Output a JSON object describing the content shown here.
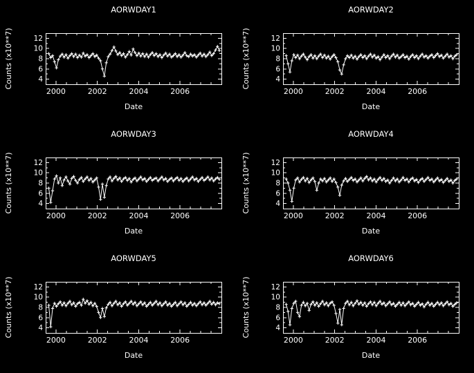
{
  "page": {
    "background": "#000000",
    "foreground": "#ffffff"
  },
  "chart_data": [
    {
      "type": "line",
      "title": "AORWDAY1",
      "xlabel": "Date",
      "ylabel": "Counts (x10**7)",
      "xlim": [
        1999.5,
        2008.0
      ],
      "ylim": [
        3,
        13
      ],
      "xticks": [
        "2000",
        "2002",
        "2004",
        "2006"
      ],
      "xtick_values": [
        2000,
        2002,
        2004,
        2006
      ],
      "yticks": [
        "4",
        "6",
        "8",
        "10",
        "12"
      ],
      "ytick_values": [
        4,
        6,
        8,
        10,
        12
      ],
      "marker": "plus",
      "line_color": "#ffffff",
      "x_start": 1999.65,
      "x_step": 0.0927,
      "values": [
        9.0,
        8.2,
        8.6,
        7.4,
        6.2,
        7.8,
        8.5,
        8.9,
        8.3,
        8.8,
        8.1,
        8.6,
        9.0,
        8.4,
        8.9,
        8.2,
        8.7,
        8.3,
        9.1,
        8.5,
        8.8,
        8.2,
        8.6,
        9.0,
        8.4,
        8.7,
        8.1,
        7.6,
        6.0,
        4.6,
        7.2,
        8.4,
        8.9,
        9.6,
        10.3,
        9.5,
        8.8,
        9.2,
        8.6,
        9.0,
        8.3,
        8.8,
        9.4,
        8.7,
        9.9,
        9.2,
        8.6,
        9.1,
        8.5,
        9.0,
        8.4,
        8.9,
        8.3,
        8.8,
        9.2,
        8.6,
        9.0,
        8.4,
        8.8,
        8.2,
        8.7,
        9.1,
        8.5,
        8.9,
        8.3,
        8.6,
        9.0,
        8.4,
        8.8,
        8.3,
        8.7,
        9.2,
        8.6,
        8.4,
        8.9,
        8.5,
        8.8,
        8.3,
        8.7,
        9.1,
        8.5,
        8.9,
        8.4,
        8.8,
        9.3,
        8.6,
        9.0,
        9.7,
        10.4,
        9.6
      ]
    },
    {
      "type": "line",
      "title": "AORWDAY2",
      "xlabel": "Date",
      "ylabel": "Counts (x10**7)",
      "xlim": [
        1999.5,
        2008.0
      ],
      "ylim": [
        3,
        13
      ],
      "xticks": [
        "2000",
        "2002",
        "2004",
        "2006"
      ],
      "xtick_values": [
        2000,
        2002,
        2004,
        2006
      ],
      "yticks": [
        "4",
        "6",
        "8",
        "10",
        "12"
      ],
      "ytick_values": [
        4,
        6,
        8,
        10,
        12
      ],
      "marker": "plus",
      "line_color": "#ffffff",
      "x_start": 1999.65,
      "x_step": 0.0927,
      "values": [
        8.6,
        7.0,
        5.4,
        7.6,
        8.8,
        8.2,
        8.7,
        8.0,
        8.5,
        8.9,
        8.3,
        7.8,
        8.4,
        8.8,
        8.1,
        8.6,
        8.0,
        8.5,
        8.9,
        8.2,
        8.7,
        8.1,
        8.5,
        7.9,
        8.4,
        8.8,
        8.2,
        7.4,
        5.8,
        5.0,
        6.8,
        8.0,
        8.6,
        8.2,
        8.7,
        8.1,
        8.5,
        7.9,
        8.4,
        8.8,
        8.2,
        8.6,
        8.0,
        8.5,
        8.9,
        8.3,
        8.7,
        8.1,
        8.4,
        7.8,
        8.3,
        8.8,
        8.2,
        8.6,
        8.0,
        8.5,
        8.9,
        8.3,
        8.7,
        8.1,
        8.4,
        8.8,
        8.2,
        8.5,
        7.9,
        8.4,
        8.8,
        8.2,
        8.6,
        8.0,
        8.5,
        8.9,
        8.3,
        8.6,
        8.1,
        8.5,
        8.8,
        8.2,
        8.6,
        9.0,
        8.4,
        8.7,
        8.1,
        8.5,
        8.9,
        8.3,
        8.6,
        8.0,
        8.5,
        8.8
      ]
    },
    {
      "type": "line",
      "title": "AORWDAY3",
      "xlabel": "Date",
      "ylabel": "Counts (x10**7)",
      "xlim": [
        1999.5,
        2008.0
      ],
      "ylim": [
        3,
        13
      ],
      "xticks": [
        "2000",
        "2002",
        "2004",
        "2006"
      ],
      "xtick_values": [
        2000,
        2002,
        2004,
        2006
      ],
      "yticks": [
        "4",
        "6",
        "8",
        "10",
        "12"
      ],
      "ytick_values": [
        4,
        6,
        8,
        10,
        12
      ],
      "marker": "plus",
      "line_color": "#ffffff",
      "x_start": 1999.65,
      "x_step": 0.0927,
      "values": [
        7.0,
        4.2,
        6.5,
        8.8,
        9.4,
        8.0,
        9.0,
        7.5,
        8.6,
        9.2,
        8.4,
        7.8,
        8.9,
        9.3,
        8.5,
        8.0,
        8.7,
        9.1,
        8.3,
        8.8,
        9.2,
        8.5,
        8.9,
        8.2,
        8.6,
        9.0,
        7.2,
        4.8,
        7.8,
        5.2,
        7.5,
        8.8,
        9.2,
        8.4,
        8.9,
        9.3,
        8.6,
        9.0,
        8.3,
        8.8,
        9.1,
        8.5,
        8.9,
        8.2,
        8.7,
        9.0,
        8.4,
        8.8,
        9.2,
        8.6,
        8.9,
        8.3,
        8.7,
        9.1,
        8.5,
        8.8,
        9.0,
        8.4,
        8.8,
        9.2,
        8.6,
        8.9,
        8.3,
        8.7,
        9.0,
        8.4,
        8.8,
        9.1,
        8.5,
        8.9,
        8.3,
        8.7,
        9.0,
        8.4,
        8.8,
        9.2,
        8.6,
        8.9,
        8.3,
        8.7,
        9.1,
        8.5,
        8.8,
        9.2,
        8.6,
        9.0,
        8.4,
        8.8,
        9.1,
        8.7
      ]
    },
    {
      "type": "line",
      "title": "AORWDAY4",
      "xlabel": "Date",
      "ylabel": "Counts (x10**7)",
      "xlim": [
        1999.5,
        2008.0
      ],
      "ylim": [
        3,
        13
      ],
      "xticks": [
        "2000",
        "2002",
        "2004",
        "2006"
      ],
      "xtick_values": [
        2000,
        2002,
        2004,
        2006
      ],
      "yticks": [
        "4",
        "6",
        "8",
        "10",
        "12"
      ],
      "ytick_values": [
        4,
        6,
        8,
        10,
        12
      ],
      "marker": "plus",
      "line_color": "#ffffff",
      "x_start": 1999.65,
      "x_step": 0.0927,
      "values": [
        8.8,
        8.0,
        6.6,
        4.4,
        7.0,
        8.6,
        9.0,
        8.2,
        8.7,
        9.1,
        8.4,
        8.9,
        8.1,
        8.6,
        9.0,
        8.3,
        6.6,
        8.0,
        8.8,
        8.4,
        8.9,
        8.2,
        8.6,
        9.0,
        8.3,
        8.8,
        8.1,
        7.2,
        5.6,
        7.6,
        8.4,
        8.9,
        8.3,
        8.7,
        9.1,
        8.5,
        8.8,
        8.2,
        8.6,
        9.0,
        8.4,
        8.9,
        9.3,
        8.6,
        9.0,
        8.4,
        8.8,
        8.2,
        8.7,
        9.1,
        8.5,
        8.9,
        8.3,
        8.6,
        8.0,
        8.5,
        9.0,
        8.4,
        8.8,
        8.2,
        8.6,
        9.1,
        8.5,
        8.8,
        8.2,
        8.7,
        9.0,
        8.4,
        8.7,
        8.1,
        8.6,
        8.9,
        8.3,
        8.7,
        9.1,
        8.5,
        8.8,
        8.2,
        8.6,
        9.0,
        8.4,
        8.7,
        8.1,
        8.5,
        8.9,
        8.3,
        8.6,
        8.0,
        8.5,
        8.8
      ]
    },
    {
      "type": "line",
      "title": "AORWDAY5",
      "xlabel": "Date",
      "ylabel": "Counts (x10**7)",
      "xlim": [
        1999.5,
        2008.0
      ],
      "ylim": [
        3,
        13
      ],
      "xticks": [
        "2000",
        "2002",
        "2004",
        "2006"
      ],
      "xtick_values": [
        2000,
        2002,
        2004,
        2006
      ],
      "yticks": [
        "4",
        "6",
        "8",
        "10",
        "12"
      ],
      "ytick_values": [
        4,
        6,
        8,
        10,
        12
      ],
      "marker": "plus",
      "line_color": "#ffffff",
      "x_start": 1999.65,
      "x_step": 0.0927,
      "values": [
        8.4,
        4.2,
        7.8,
        8.8,
        8.2,
        8.7,
        9.1,
        8.4,
        8.9,
        8.3,
        8.8,
        9.2,
        8.5,
        8.9,
        8.2,
        8.7,
        9.0,
        8.4,
        9.6,
        8.8,
        9.3,
        8.6,
        9.0,
        8.3,
        8.8,
        8.2,
        7.0,
        6.0,
        7.8,
        6.2,
        7.9,
        8.6,
        9.0,
        8.3,
        8.8,
        9.2,
        8.5,
        8.9,
        8.2,
        8.7,
        9.1,
        8.4,
        8.8,
        9.2,
        8.6,
        9.0,
        8.3,
        8.7,
        9.1,
        8.5,
        8.9,
        8.2,
        8.6,
        9.0,
        8.4,
        8.8,
        9.2,
        8.5,
        8.9,
        8.3,
        8.7,
        9.1,
        8.4,
        8.8,
        8.2,
        8.6,
        9.0,
        8.3,
        8.7,
        9.1,
        8.5,
        8.9,
        8.2,
        8.6,
        9.0,
        8.4,
        8.8,
        8.3,
        8.7,
        9.1,
        8.5,
        8.9,
        8.4,
        8.8,
        9.2,
        8.6,
        9.0,
        8.5,
        8.9,
        8.7
      ]
    },
    {
      "type": "line",
      "title": "AORWDAY6",
      "xlabel": "Date",
      "ylabel": "Counts (x10**7)",
      "xlim": [
        1999.5,
        2008.0
      ],
      "ylim": [
        3,
        13
      ],
      "xticks": [
        "2000",
        "2002",
        "2004",
        "2006"
      ],
      "xtick_values": [
        2000,
        2002,
        2004,
        2006
      ],
      "yticks": [
        "4",
        "6",
        "8",
        "10",
        "12"
      ],
      "ytick_values": [
        4,
        6,
        8,
        10,
        12
      ],
      "marker": "plus",
      "line_color": "#ffffff",
      "x_start": 1999.65,
      "x_step": 0.0927,
      "values": [
        8.6,
        7.2,
        4.6,
        7.8,
        8.8,
        9.2,
        7.0,
        6.2,
        8.4,
        9.0,
        8.3,
        8.8,
        7.4,
        8.6,
        9.1,
        8.4,
        8.9,
        8.2,
        8.7,
        9.2,
        8.5,
        8.9,
        8.3,
        8.8,
        9.1,
        8.4,
        6.8,
        4.9,
        7.6,
        4.6,
        7.8,
        8.8,
        9.2,
        8.5,
        9.0,
        8.3,
        8.8,
        9.3,
        8.6,
        9.0,
        8.4,
        8.9,
        8.2,
        8.7,
        9.1,
        8.5,
        9.0,
        8.3,
        8.8,
        9.2,
        8.6,
        8.9,
        8.3,
        8.7,
        9.1,
        8.5,
        8.8,
        8.2,
        8.6,
        9.0,
        8.4,
        8.9,
        8.3,
        8.7,
        9.1,
        8.5,
        8.8,
        8.2,
        8.6,
        9.0,
        8.4,
        8.7,
        8.1,
        8.6,
        9.0,
        8.4,
        8.8,
        8.2,
        8.6,
        9.0,
        8.5,
        8.9,
        8.3,
        8.7,
        9.1,
        8.5,
        8.8,
        8.2,
        8.6,
        8.9
      ]
    }
  ]
}
